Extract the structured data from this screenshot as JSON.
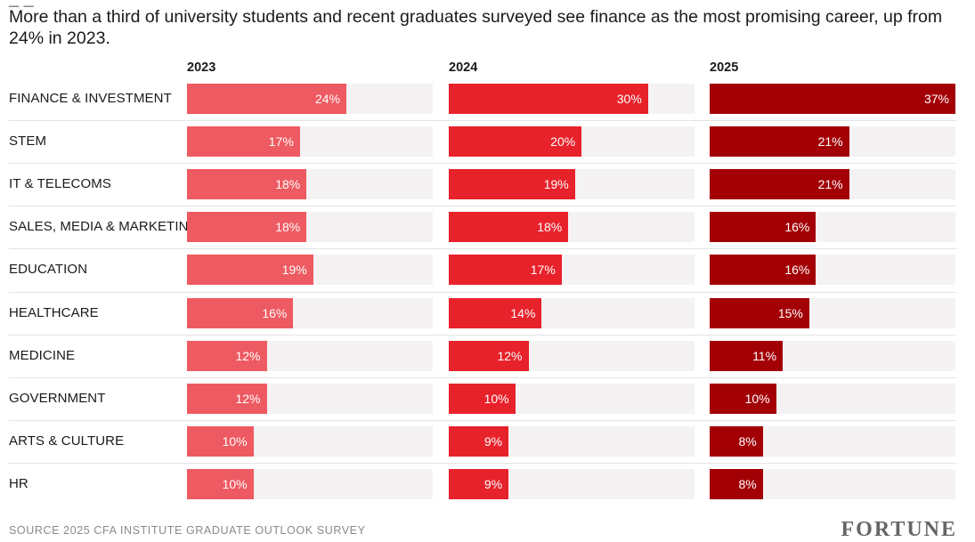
{
  "subtitle": "More than a third of university students and recent graduates surveyed see finance as the most promising career, up from 24% in 2023.",
  "source": "SOURCE 2025 CFA INSTITUTE GRADUATE OUTLOOK SURVEY",
  "brand": "FORTUNE",
  "chart_data": {
    "type": "bar",
    "orientation": "horizontal",
    "title": "",
    "categories": [
      "FINANCE & INVESTMENT",
      "STEM",
      "IT & TELECOMS",
      "SALES, MEDIA & MARKETING",
      "EDUCATION",
      "HEALTHCARE",
      "MEDICINE",
      "GOVERNMENT",
      "ARTS & CULTURE",
      "HR"
    ],
    "series": [
      {
        "name": "2023",
        "color": "#ee5a61",
        "values": [
          24,
          17,
          18,
          18,
          19,
          16,
          12,
          12,
          10,
          10
        ],
        "labels": [
          "24%",
          "17%",
          "18%",
          "18%",
          "19%",
          "16%",
          "12%",
          "12%",
          "10%",
          "10%"
        ]
      },
      {
        "name": "2024",
        "color": "#e8222b",
        "values": [
          30,
          20,
          19,
          18,
          17,
          14,
          12,
          10,
          9,
          9
        ],
        "labels": [
          "30%",
          "20%",
          "19%",
          "18%",
          "17%",
          "14%",
          "12%",
          "10%",
          "9%",
          "9%"
        ]
      },
      {
        "name": "2025",
        "color": "#a30006",
        "values": [
          37,
          21,
          21,
          16,
          16,
          15,
          11,
          10,
          8,
          8
        ],
        "labels": [
          "37%",
          "21%",
          "21%",
          "16%",
          "16%",
          "15%",
          "11%",
          "10%",
          "8%",
          "8%"
        ]
      }
    ],
    "xlim": [
      0,
      37
    ],
    "grid": false,
    "legend": "column headers"
  }
}
